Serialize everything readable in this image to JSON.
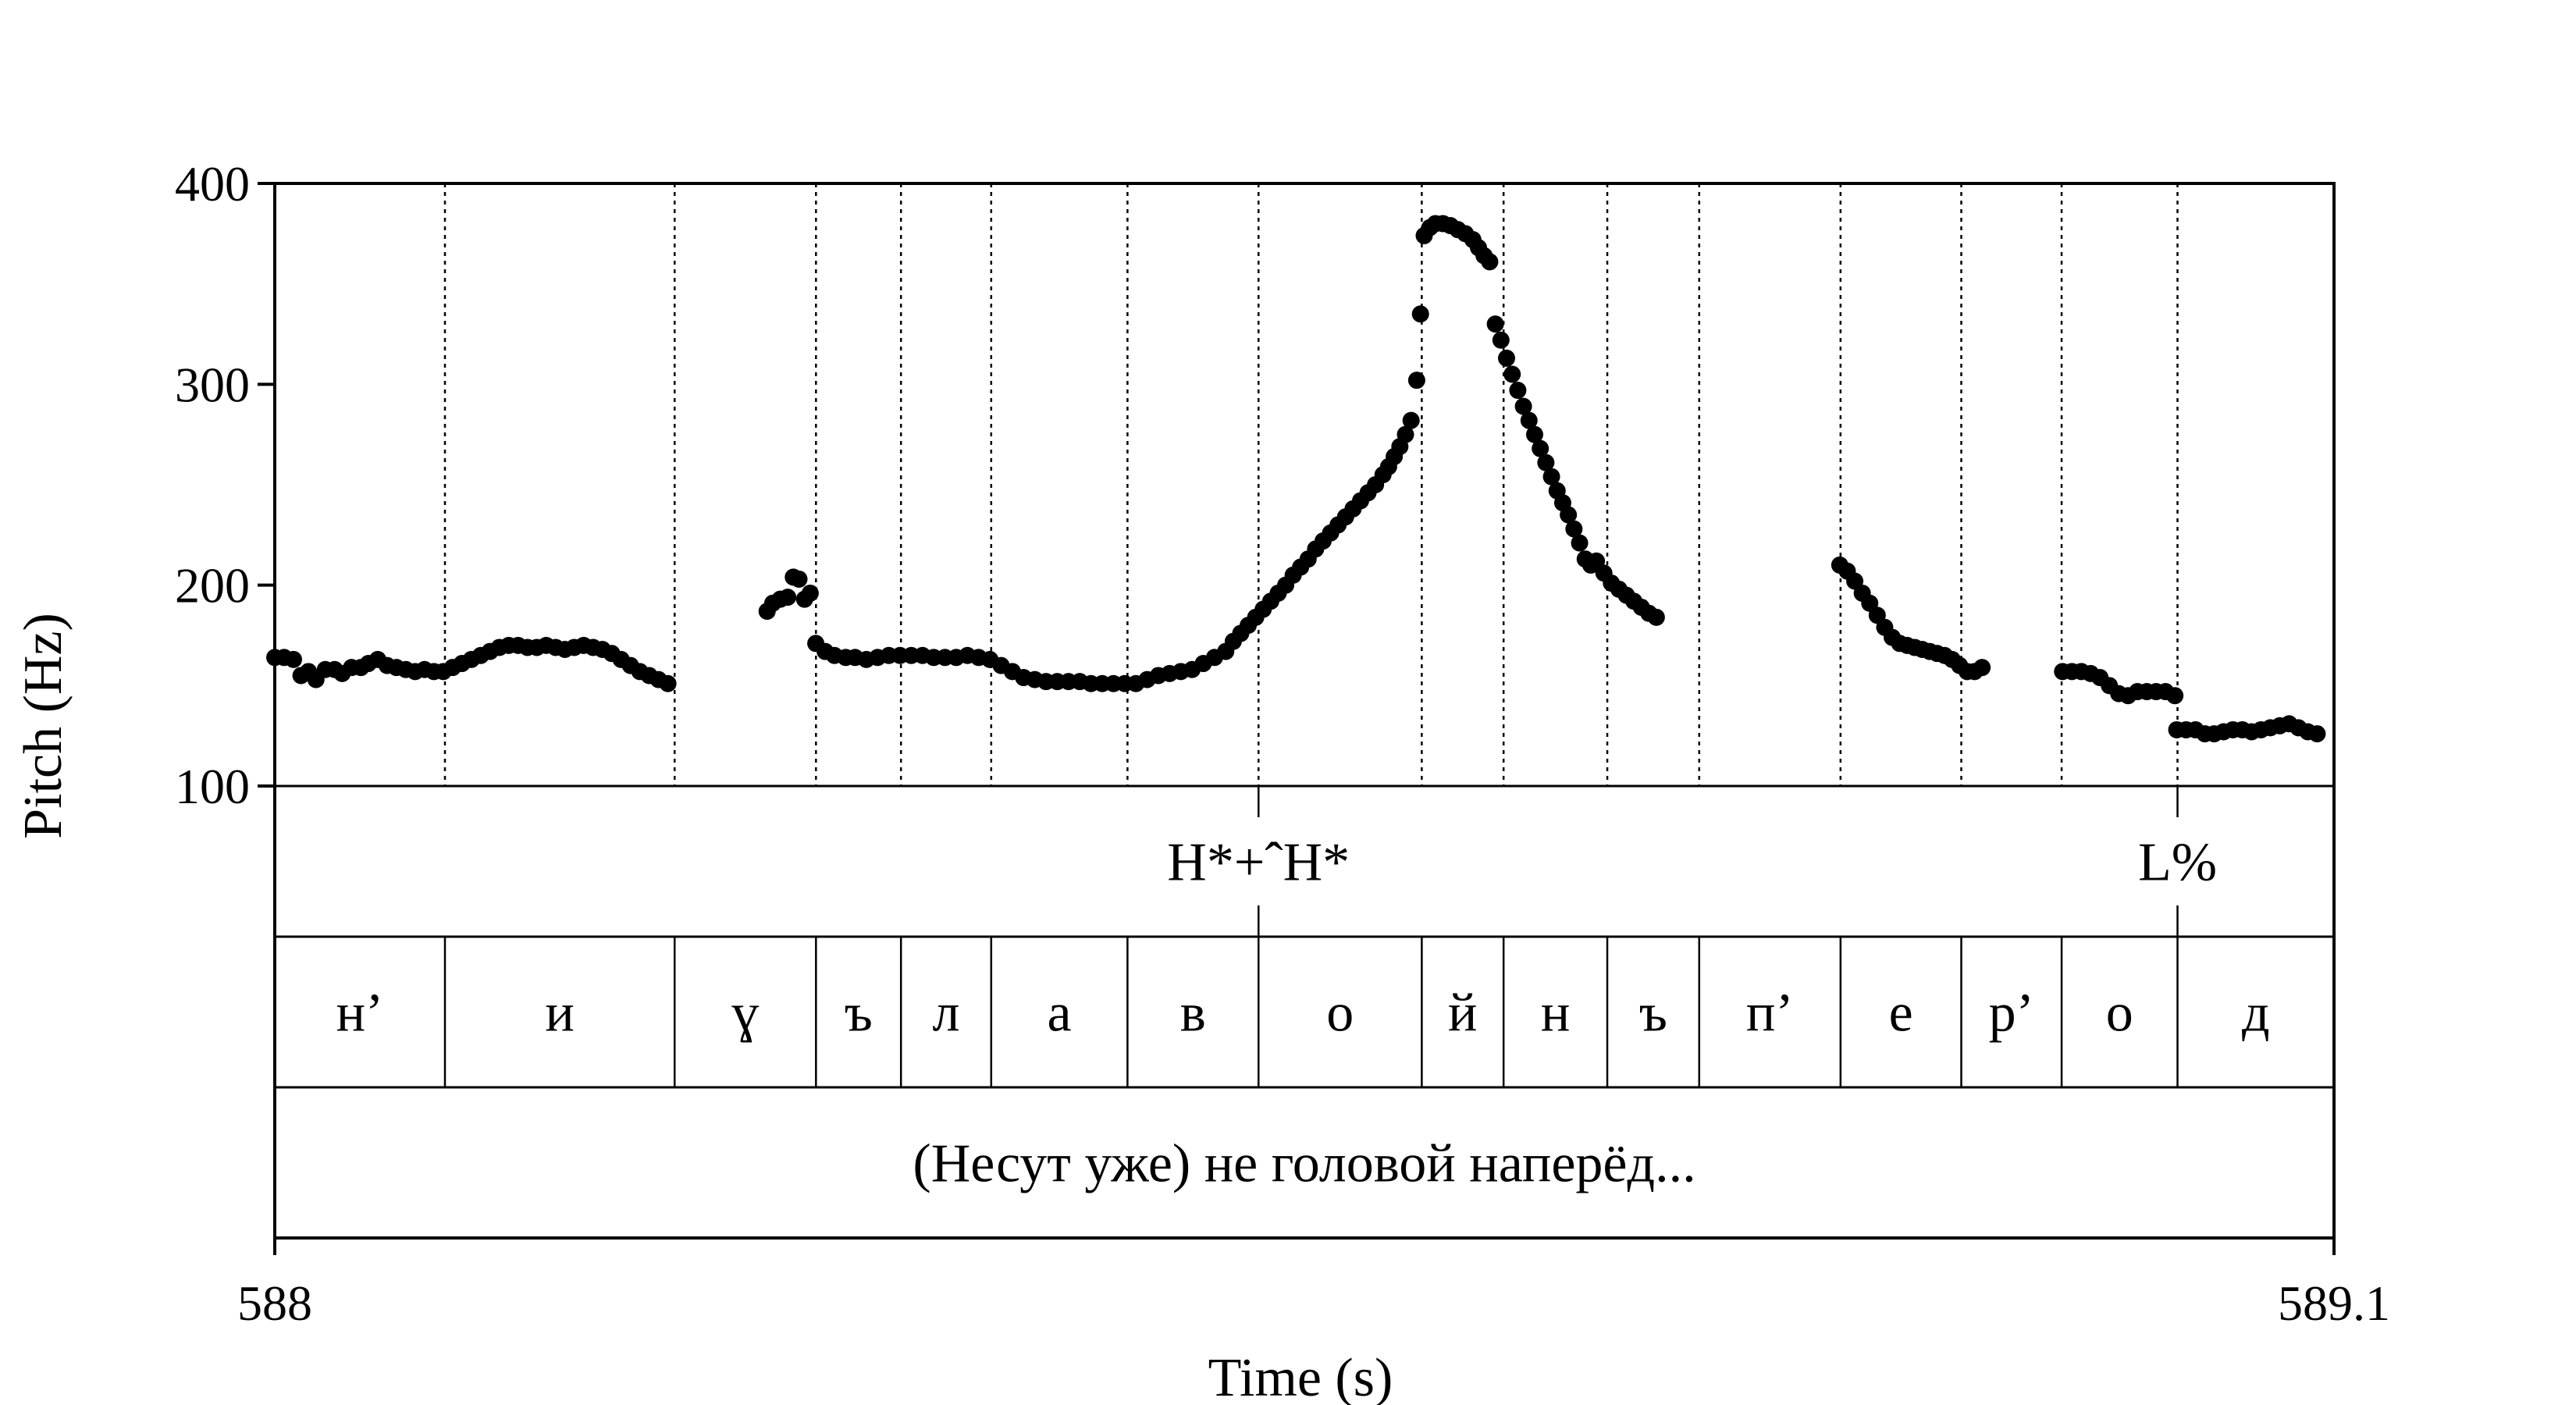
{
  "chart_data": {
    "type": "scatter",
    "title": "",
    "xlabel": "Time (s)",
    "ylabel": "Pitch (Hz)",
    "xlim": [
      588,
      589.1
    ],
    "ylim": [
      100,
      400
    ],
    "x_tick_labels": [
      "588",
      "589.1"
    ],
    "y_ticks": [
      100,
      200,
      300,
      400
    ],
    "y_tick_labels": [
      "100",
      "200",
      "300",
      "400"
    ],
    "grid": false,
    "segment_boundaries": [
      588.0909,
      588.2136,
      588.2891,
      588.3345,
      588.3827,
      588.4555,
      588.5255,
      588.6127,
      588.6564,
      588.7118,
      588.7609,
      588.8364,
      588.9009,
      588.9545,
      589.0164
    ],
    "tone_tier": [
      {
        "label": "H*+ˆH*",
        "time": 588.5255
      },
      {
        "label": "L%",
        "time": 589.0164
      }
    ],
    "segments": [
      {
        "label": "н’",
        "start": 588.0,
        "end": 588.0909
      },
      {
        "label": "и",
        "start": 588.0909,
        "end": 588.2136
      },
      {
        "label": "ɣ",
        "start": 588.2136,
        "end": 588.2891
      },
      {
        "label": "ъ",
        "start": 588.2891,
        "end": 588.3345
      },
      {
        "label": "л",
        "start": 588.3345,
        "end": 588.3827
      },
      {
        "label": "а",
        "start": 588.3827,
        "end": 588.4555
      },
      {
        "label": "в",
        "start": 588.4555,
        "end": 588.5255
      },
      {
        "label": "о",
        "start": 588.5255,
        "end": 588.6127
      },
      {
        "label": "й",
        "start": 588.6127,
        "end": 588.6564
      },
      {
        "label": "н",
        "start": 588.6564,
        "end": 588.7118
      },
      {
        "label": "ъ",
        "start": 588.7118,
        "end": 588.7609
      },
      {
        "label": "п’",
        "start": 588.7609,
        "end": 588.8364
      },
      {
        "label": "е",
        "start": 588.8364,
        "end": 588.9009
      },
      {
        "label": "р’",
        "start": 588.9009,
        "end": 588.9545
      },
      {
        "label": "о",
        "start": 588.9545,
        "end": 589.0164
      },
      {
        "label": "д",
        "start": 589.0164,
        "end": 589.1
      }
    ],
    "sentence": "(Несут уже) не головой наперёд...",
    "series": [
      {
        "points": [
          [
            588.0,
            164
          ],
          [
            588.005,
            164
          ],
          [
            588.01,
            163
          ],
          [
            588.014,
            155
          ],
          [
            588.018,
            157
          ],
          [
            588.022,
            153
          ],
          [
            588.027,
            158
          ],
          [
            588.032,
            158
          ],
          [
            588.036,
            156
          ],
          [
            588.041,
            159
          ],
          [
            588.046,
            159
          ],
          [
            588.05,
            161
          ],
          [
            588.055,
            163
          ],
          [
            588.06,
            160
          ],
          [
            588.065,
            159
          ],
          [
            588.07,
            158
          ],
          [
            588.075,
            157
          ],
          [
            588.08,
            158
          ],
          [
            588.085,
            157
          ],
          [
            588.09,
            157
          ],
          [
            588.095,
            159
          ],
          [
            588.1,
            161
          ],
          [
            588.105,
            163
          ],
          [
            588.11,
            165
          ],
          [
            588.115,
            167
          ],
          [
            588.12,
            169
          ],
          [
            588.125,
            170
          ],
          [
            588.13,
            170
          ],
          [
            588.135,
            169
          ],
          [
            588.14,
            169
          ],
          [
            588.145,
            170
          ],
          [
            588.15,
            169
          ],
          [
            588.155,
            168
          ],
          [
            588.16,
            169
          ],
          [
            588.165,
            170
          ],
          [
            588.17,
            169
          ],
          [
            588.175,
            168
          ],
          [
            588.18,
            166
          ],
          [
            588.185,
            163
          ],
          [
            588.19,
            160
          ],
          [
            588.195,
            157
          ],
          [
            588.2,
            155
          ],
          [
            588.205,
            153
          ],
          [
            588.21,
            151
          ]
        ]
      },
      {
        "points": [
          [
            588.263,
            187
          ],
          [
            588.266,
            191
          ],
          [
            588.27,
            193
          ],
          [
            588.274,
            194
          ],
          [
            588.277,
            204
          ],
          [
            588.28,
            203
          ],
          [
            588.283,
            193
          ],
          [
            588.286,
            196
          ]
        ]
      },
      {
        "points": [
          [
            588.289,
            171
          ],
          [
            588.294,
            167
          ],
          [
            588.299,
            165
          ],
          [
            588.305,
            164
          ],
          [
            588.31,
            164
          ],
          [
            588.316,
            163
          ],
          [
            588.322,
            164
          ],
          [
            588.328,
            165
          ],
          [
            588.334,
            165
          ],
          [
            588.34,
            165
          ],
          [
            588.346,
            165
          ],
          [
            588.352,
            164
          ],
          [
            588.358,
            164
          ],
          [
            588.364,
            164
          ],
          [
            588.37,
            165
          ],
          [
            588.376,
            164
          ],
          [
            588.382,
            163
          ],
          [
            588.388,
            160
          ],
          [
            588.394,
            157
          ],
          [
            588.4,
            154
          ],
          [
            588.406,
            153
          ],
          [
            588.412,
            152
          ],
          [
            588.418,
            152
          ],
          [
            588.424,
            152
          ],
          [
            588.43,
            152
          ],
          [
            588.436,
            151
          ],
          [
            588.442,
            151
          ],
          [
            588.448,
            151
          ],
          [
            588.454,
            151
          ],
          [
            588.46,
            151
          ],
          [
            588.466,
            153
          ],
          [
            588.472,
            155
          ],
          [
            588.478,
            156
          ],
          [
            588.484,
            157
          ],
          [
            588.49,
            158
          ],
          [
            588.496,
            161
          ],
          [
            588.502,
            164
          ],
          [
            588.508,
            167
          ],
          [
            588.512,
            172
          ],
          [
            588.516,
            176
          ],
          [
            588.52,
            180
          ],
          [
            588.524,
            184
          ],
          [
            588.528,
            188
          ],
          [
            588.532,
            192
          ],
          [
            588.536,
            196
          ],
          [
            588.54,
            200
          ],
          [
            588.544,
            205
          ],
          [
            588.548,
            209
          ],
          [
            588.552,
            213
          ],
          [
            588.556,
            218
          ],
          [
            588.56,
            222
          ],
          [
            588.564,
            226
          ],
          [
            588.568,
            230
          ],
          [
            588.572,
            234
          ],
          [
            588.576,
            238
          ],
          [
            588.58,
            242
          ],
          [
            588.584,
            246
          ],
          [
            588.588,
            250
          ],
          [
            588.592,
            255
          ],
          [
            588.595,
            259
          ],
          [
            588.598,
            264
          ],
          [
            588.601,
            269
          ],
          [
            588.604,
            275
          ],
          [
            588.607,
            282
          ],
          [
            588.61,
            302
          ],
          [
            588.612,
            335
          ],
          [
            588.614,
            374
          ],
          [
            588.617,
            378
          ],
          [
            588.62,
            380
          ],
          [
            588.624,
            380
          ],
          [
            588.628,
            379
          ],
          [
            588.632,
            377
          ],
          [
            588.636,
            375
          ],
          [
            588.64,
            372
          ],
          [
            588.643,
            368
          ],
          [
            588.646,
            364
          ],
          [
            588.649,
            361
          ],
          [
            588.652,
            330
          ],
          [
            588.655,
            322
          ],
          [
            588.658,
            313
          ],
          [
            588.661,
            305
          ],
          [
            588.664,
            297
          ],
          [
            588.667,
            289
          ],
          [
            588.67,
            282
          ],
          [
            588.673,
            275
          ],
          [
            588.676,
            268
          ],
          [
            588.679,
            261
          ],
          [
            588.682,
            254
          ],
          [
            588.685,
            247
          ],
          [
            588.688,
            241
          ],
          [
            588.691,
            235
          ],
          [
            588.694,
            228
          ],
          [
            588.697,
            221
          ],
          [
            588.7,
            213
          ],
          [
            588.703,
            210
          ],
          [
            588.706,
            212
          ],
          [
            588.71,
            206
          ],
          [
            588.714,
            201
          ],
          [
            588.718,
            198
          ],
          [
            588.722,
            195
          ],
          [
            588.726,
            192
          ],
          [
            588.73,
            189
          ],
          [
            588.734,
            186
          ],
          [
            588.738,
            184
          ]
        ]
      },
      {
        "points": [
          [
            588.836,
            210
          ],
          [
            588.84,
            207
          ],
          [
            588.844,
            202
          ],
          [
            588.848,
            196
          ],
          [
            588.852,
            191
          ],
          [
            588.856,
            185
          ],
          [
            588.86,
            179
          ],
          [
            588.864,
            174
          ],
          [
            588.868,
            171
          ],
          [
            588.872,
            170
          ],
          [
            588.876,
            169
          ],
          [
            588.88,
            168
          ],
          [
            588.884,
            167
          ],
          [
            588.888,
            166
          ],
          [
            588.892,
            165
          ],
          [
            588.896,
            163
          ],
          [
            588.9,
            160
          ],
          [
            588.904,
            157
          ],
          [
            588.908,
            157
          ],
          [
            588.912,
            159
          ]
        ]
      },
      {
        "points": [
          [
            588.955,
            157
          ],
          [
            588.96,
            157
          ],
          [
            588.965,
            157
          ],
          [
            588.97,
            156
          ],
          [
            588.975,
            154
          ],
          [
            588.98,
            150
          ],
          [
            588.985,
            146
          ],
          [
            588.99,
            145
          ],
          [
            588.995,
            147
          ],
          [
            589.0,
            147
          ],
          [
            589.005,
            147
          ],
          [
            589.01,
            147
          ],
          [
            589.015,
            145
          ]
        ]
      },
      {
        "points": [
          [
            589.016,
            128
          ],
          [
            589.021,
            128
          ],
          [
            589.026,
            128
          ],
          [
            589.031,
            126
          ],
          [
            589.036,
            126
          ],
          [
            589.041,
            127
          ],
          [
            589.046,
            128
          ],
          [
            589.051,
            128
          ],
          [
            589.056,
            127
          ],
          [
            589.061,
            128
          ],
          [
            589.066,
            129
          ],
          [
            589.071,
            130
          ],
          [
            589.076,
            131
          ],
          [
            589.081,
            129
          ],
          [
            589.086,
            127
          ],
          [
            589.091,
            126
          ]
        ]
      }
    ]
  }
}
